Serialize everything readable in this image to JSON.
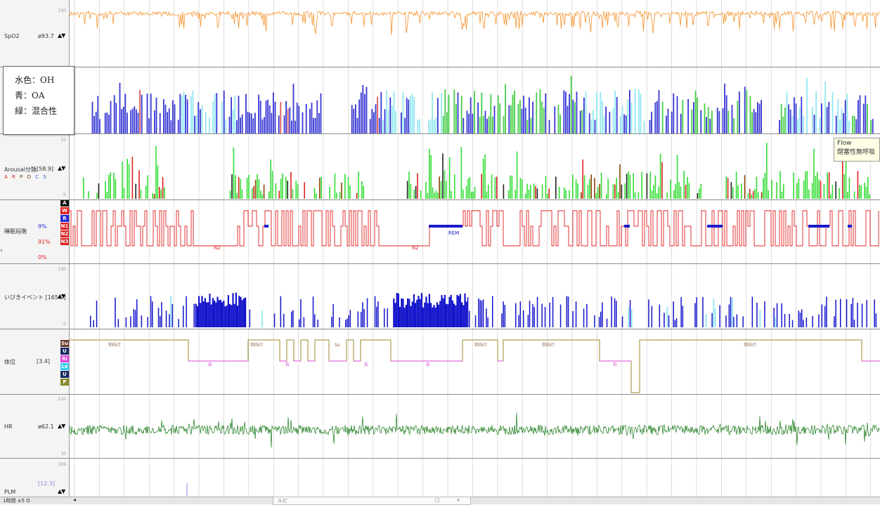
{
  "legend": {
    "line1": "水色：OH",
    "line2": "青：OA",
    "line3": "緑：混合性"
  },
  "channels": {
    "spo2": {
      "label": "SpO2",
      "value": "ø93.7",
      "scale_top": "100",
      "color": "#f5922a"
    },
    "apnea": {
      "color_oh": "#7fe3f0",
      "color_oa": "#1414cc",
      "color_mixed": "#27c427"
    },
    "arousal": {
      "label": "Arousal分類",
      "value": "[58.9]",
      "scale_top": "33",
      "scale_bottom": "0",
      "letters": [
        "A",
        "R",
        "P",
        "D",
        "C",
        "S"
      ]
    },
    "sleep_stage": {
      "label": "睡眠段階",
      "pct_r": "9%",
      "pct_n": "91%",
      "pct_other": "0%",
      "stages": [
        "A",
        "W",
        "R",
        "N1",
        "N2",
        "N3"
      ],
      "marks": [
        "N2",
        "N2",
        "REM"
      ]
    },
    "snore": {
      "label": "いびきイベント [165.0]",
      "scale_top": "100",
      "scale_bottom": "0"
    },
    "position": {
      "label": "体位",
      "value": "[3.4]",
      "codes": [
        "Su",
        "U",
        "Ri",
        "Le",
        "U",
        "P"
      ],
      "marks": [
        "仰向け",
        "仰向け",
        "仰向け",
        "仰向け",
        "仰向け",
        "右",
        "右",
        "右",
        "右",
        "右",
        "Su"
      ]
    },
    "hr": {
      "label": "HR",
      "value": "ø62.1",
      "scale_top": "120",
      "scale_bottom": "30",
      "color": "#1a7a1a"
    },
    "plm": {
      "label": "PLM",
      "value": "[12.3]",
      "scale_top": "169"
    }
  },
  "tooltip": {
    "line1": "Flow",
    "line2": "閉塞性無呼吸"
  },
  "statusbar": {
    "left_text": "1時間 ±5 O",
    "window_title": "ルビ"
  },
  "icons": [
    "up-down-arrows-icon",
    "collapse-arrow-icon",
    "window-minimize-icon",
    "window-close-icon"
  ]
}
